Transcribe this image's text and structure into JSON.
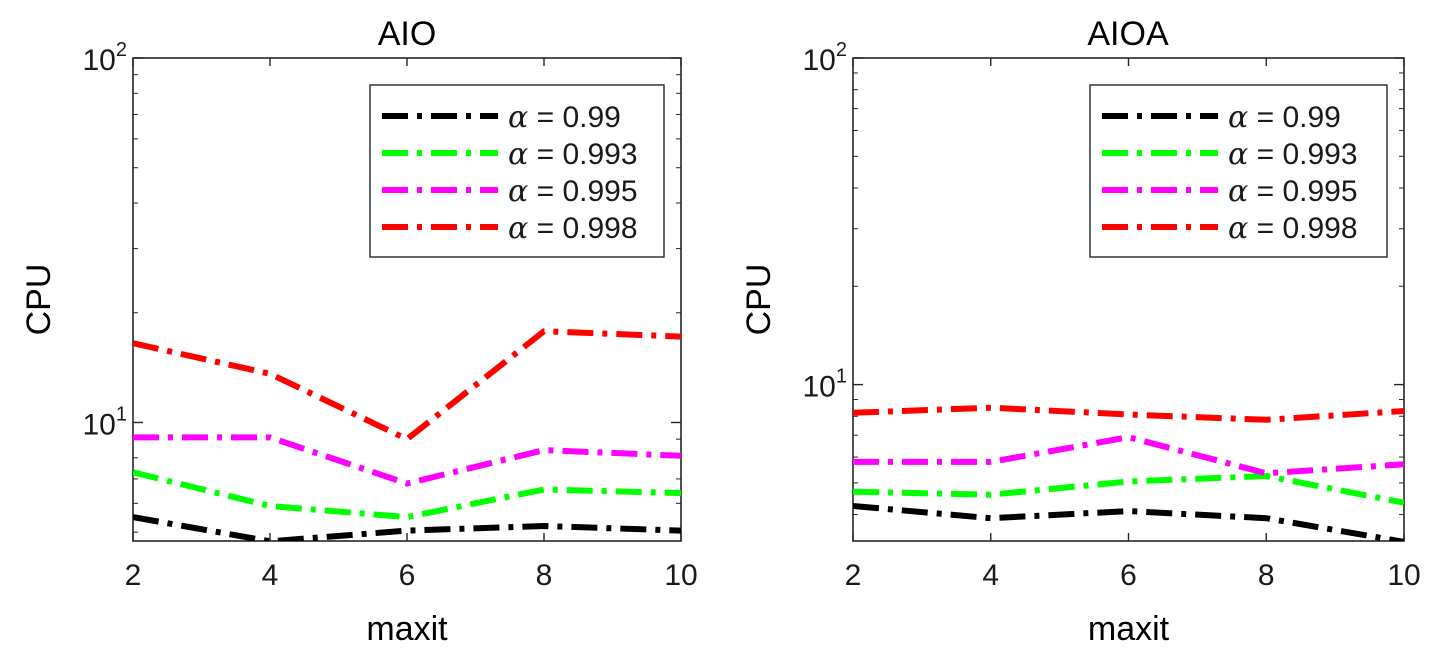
{
  "chart_data": [
    {
      "type": "line",
      "title": "AIO",
      "xlabel": "maxit",
      "ylabel": "CPU",
      "yscale": "log",
      "xlim": [
        2,
        10
      ],
      "ylim": [
        4.73,
        100
      ],
      "x": [
        2,
        4,
        6,
        8,
        10
      ],
      "xticks": [
        "2",
        "4",
        "6",
        "8",
        "10"
      ],
      "yticks": [
        {
          "value": 10,
          "base": "10",
          "exp": "1"
        },
        {
          "value": 100,
          "base": "10",
          "exp": "2"
        }
      ],
      "legend_position": "top-right",
      "series": [
        {
          "name": "α = 0.99",
          "symbol": "α",
          "label": " = 0.99",
          "color": "#000000",
          "values": [
            5.5,
            4.72,
            5.05,
            5.2,
            5.05
          ]
        },
        {
          "name": "α = 0.993",
          "symbol": "α",
          "label": " = 0.993",
          "color": "#00ff00",
          "values": [
            7.3,
            5.9,
            5.5,
            6.55,
            6.4
          ]
        },
        {
          "name": "α = 0.995",
          "symbol": "α",
          "label": " = 0.995",
          "color": "#ff00ff",
          "values": [
            9.1,
            9.1,
            6.8,
            8.4,
            8.1
          ]
        },
        {
          "name": "α = 0.998",
          "symbol": "α",
          "label": " = 0.998",
          "color": "#ff0000",
          "values": [
            16.5,
            13.6,
            9.0,
            17.8,
            17.2
          ]
        }
      ]
    },
    {
      "type": "line",
      "title": "AIOA",
      "xlabel": "maxit",
      "ylabel": "CPU",
      "yscale": "log",
      "xlim": [
        2,
        10
      ],
      "ylim": [
        3.32,
        100
      ],
      "x": [
        2,
        4,
        6,
        8,
        10
      ],
      "xticks": [
        "2",
        "4",
        "6",
        "8",
        "10"
      ],
      "yticks": [
        {
          "value": 10,
          "base": "10",
          "exp": "1"
        },
        {
          "value": 100,
          "base": "10",
          "exp": "2"
        }
      ],
      "legend_position": "top-right",
      "series": [
        {
          "name": "α = 0.99",
          "symbol": "α",
          "label": " = 0.99",
          "color": "#000000",
          "values": [
            4.25,
            3.9,
            4.1,
            3.9,
            3.3
          ]
        },
        {
          "name": "α = 0.993",
          "symbol": "α",
          "label": " = 0.993",
          "color": "#00ff00",
          "values": [
            4.7,
            4.6,
            5.05,
            5.25,
            4.35
          ]
        },
        {
          "name": "α = 0.995",
          "symbol": "α",
          "label": " = 0.995",
          "color": "#ff00ff",
          "values": [
            5.8,
            5.8,
            6.9,
            5.35,
            5.7
          ]
        },
        {
          "name": "α = 0.998",
          "symbol": "α",
          "label": " = 0.998",
          "color": "#ff0000",
          "values": [
            8.2,
            8.5,
            8.1,
            7.8,
            8.3
          ]
        }
      ]
    }
  ]
}
